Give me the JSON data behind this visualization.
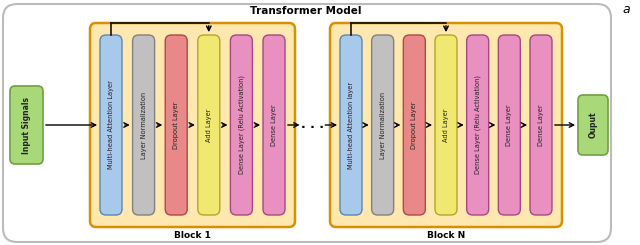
{
  "title": "Transformer Model",
  "label_a": "a",
  "outer_bg": "#FFFFFF",
  "outer_border": "#BBBBBB",
  "input_label": "Input Signals",
  "input_color": "#A8D878",
  "input_border": "#70A040",
  "output_label": "Ouput",
  "output_color": "#A8D878",
  "output_border": "#70A040",
  "block1_label": "Block 1",
  "blockN_label": "Block N",
  "dots": ". . .",
  "block_bg": "#FFE8B0",
  "block_border": "#D89000",
  "block1_layers": [
    {
      "label": "Multi-head Attention Layer",
      "color": "#A8C8EC",
      "border": "#5888B0"
    },
    {
      "label": "Layer Normalization",
      "color": "#C0C0C0",
      "border": "#808080"
    },
    {
      "label": "Dropout Layer",
      "color": "#E88888",
      "border": "#B04848"
    },
    {
      "label": "Add Layer",
      "color": "#F0E870",
      "border": "#B0A828"
    },
    {
      "label": "Dense Layer (Relu Activation)",
      "color": "#E890C0",
      "border": "#A84880"
    },
    {
      "label": "Dense Layer",
      "color": "#E890C0",
      "border": "#A84880"
    }
  ],
  "blockN_layers": [
    {
      "label": "Multi-head Attention layer",
      "color": "#A8C8EC",
      "border": "#5888B0"
    },
    {
      "label": "Layer Normalization",
      "color": "#C0C0C0",
      "border": "#808080"
    },
    {
      "label": "Dropout Layer",
      "color": "#E88888",
      "border": "#B04848"
    },
    {
      "label": "Add Layer",
      "color": "#F0E870",
      "border": "#B0A828"
    },
    {
      "label": "Dense Layer (Relu Activation)",
      "color": "#E890C0",
      "border": "#A84880"
    },
    {
      "label": "Dense Layer",
      "color": "#E890C0",
      "border": "#A84880"
    },
    {
      "label": "Dense Layer",
      "color": "#E890C0",
      "border": "#A84880"
    }
  ],
  "figsize": [
    6.4,
    2.45
  ],
  "dpi": 100
}
